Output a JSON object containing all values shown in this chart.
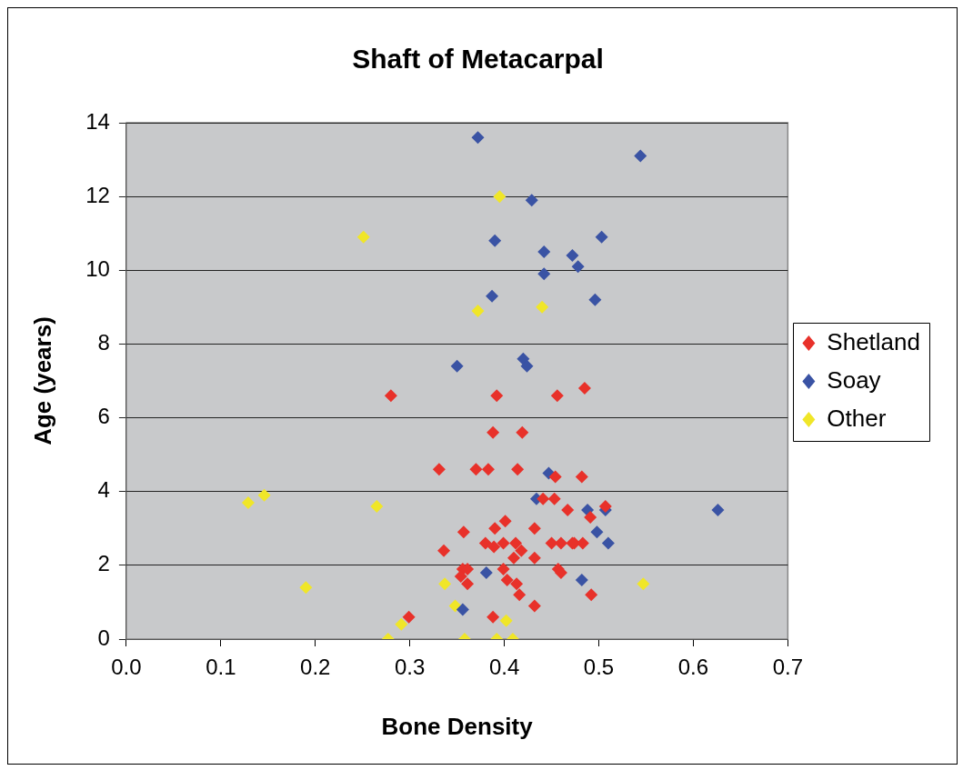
{
  "chart_data": {
    "type": "scatter",
    "title": "Shaft of Metacarpal",
    "xlabel": "Bone Density",
    "ylabel": "Age (years)",
    "xlim": [
      0,
      0.7
    ],
    "xticks": [
      {
        "value": 0,
        "label": "0.0"
      },
      0.1,
      0.2,
      0.3,
      0.4,
      0.5,
      0.6,
      0.7
    ],
    "ylim": [
      0,
      14
    ],
    "yticks": [
      0,
      2,
      4,
      6,
      8,
      10,
      12,
      14
    ],
    "grid": "y",
    "legend": "right",
    "marker": "diamond",
    "series": [
      {
        "name": "Shetland",
        "color": "#e8312a",
        "x": [
          0.28,
          0.392,
          0.388,
          0.419,
          0.331,
          0.37,
          0.383,
          0.414,
          0.401,
          0.357,
          0.39,
          0.38,
          0.389,
          0.399,
          0.412,
          0.418,
          0.41,
          0.336,
          0.356,
          0.361,
          0.354,
          0.361,
          0.399,
          0.403,
          0.413,
          0.416,
          0.299,
          0.388,
          0.456,
          0.485,
          0.454,
          0.482,
          0.441,
          0.453,
          0.467,
          0.507,
          0.491,
          0.432,
          0.432,
          0.45,
          0.46,
          0.472,
          0.474,
          0.483,
          0.457,
          0.46,
          0.492,
          0.432
        ],
        "values": [
          6.6,
          6.6,
          5.6,
          5.6,
          4.6,
          4.6,
          4.6,
          4.6,
          3.2,
          2.9,
          3.0,
          2.6,
          2.5,
          2.6,
          2.6,
          2.4,
          2.2,
          2.4,
          1.9,
          1.9,
          1.7,
          1.5,
          1.9,
          1.6,
          1.5,
          1.2,
          0.6,
          0.6,
          6.6,
          6.8,
          4.4,
          4.4,
          3.8,
          3.8,
          3.5,
          3.6,
          3.3,
          3.0,
          2.2,
          2.6,
          2.6,
          2.6,
          2.6,
          2.6,
          1.9,
          1.8,
          1.2,
          0.9
        ]
      },
      {
        "name": "Soay",
        "color": "#3a53a4",
        "x": [
          0.372,
          0.544,
          0.429,
          0.39,
          0.503,
          0.442,
          0.472,
          0.478,
          0.442,
          0.387,
          0.496,
          0.35,
          0.42,
          0.424,
          0.447,
          0.434,
          0.488,
          0.507,
          0.626,
          0.498,
          0.51,
          0.482,
          0.381,
          0.356
        ],
        "values": [
          13.6,
          13.1,
          11.9,
          10.8,
          10.9,
          10.5,
          10.4,
          10.1,
          9.9,
          9.3,
          9.2,
          7.4,
          7.6,
          7.4,
          4.5,
          3.8,
          3.5,
          3.5,
          3.5,
          2.9,
          2.6,
          1.6,
          1.8,
          0.8
        ]
      },
      {
        "name": "Other",
        "color": "#f0e628",
        "x": [
          0.395,
          0.251,
          0.372,
          0.44,
          0.129,
          0.146,
          0.265,
          0.19,
          0.337,
          0.348,
          0.291,
          0.277,
          0.358,
          0.392,
          0.409,
          0.402,
          0.547
        ],
        "values": [
          12.0,
          10.9,
          8.9,
          9.0,
          3.7,
          3.9,
          3.6,
          1.4,
          1.5,
          0.9,
          0.4,
          0,
          0,
          0,
          0,
          0.5,
          1.5
        ]
      }
    ]
  }
}
